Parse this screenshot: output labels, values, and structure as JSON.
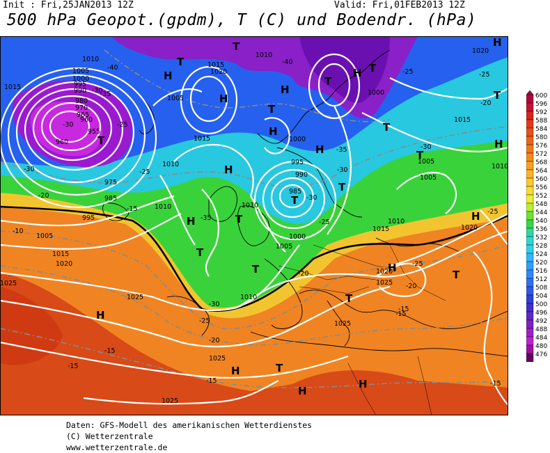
{
  "header": {
    "init": "Init : Fri,25JAN2013 12Z",
    "valid": "Valid: Fri,01FEB2013 12Z",
    "title": "500 hPa Geopot.(gpdm), T (C) und Bodendr. (hPa)"
  },
  "footer": {
    "line1": "Daten: GFS-Modell des amerikanischen Wetterdienstes",
    "line2": "(C) Wetterzentrale",
    "line3": "www.wetterzentrale.de"
  },
  "colors": {
    "violet": "#9900cc",
    "blue": "#2255ee",
    "cyan": "#22ccee",
    "green": "#33dd33",
    "yellow": "#eeee22",
    "orange": "#f08020",
    "red": "#cc3311"
  },
  "legend": {
    "levels": [
      "600",
      "596",
      "592",
      "588",
      "584",
      "580",
      "576",
      "572",
      "568",
      "564",
      "560",
      "556",
      "552",
      "548",
      "544",
      "540",
      "536",
      "532",
      "528",
      "524",
      "520",
      "516",
      "512",
      "508",
      "504",
      "500",
      "496",
      "492",
      "488",
      "484",
      "480",
      "476"
    ],
    "colors": [
      "#b0083c",
      "#c81030",
      "#d82020",
      "#e03a18",
      "#e85018",
      "#ec6418",
      "#f07818",
      "#f48c18",
      "#f8a020",
      "#fab428",
      "#fcc830",
      "#f8dc30",
      "#eeee30",
      "#b8f030",
      "#70e038",
      "#38d840",
      "#30d8a0",
      "#30d8d0",
      "#30d0f0",
      "#30b8f8",
      "#30a0f8",
      "#3088f8",
      "#3070f0",
      "#3058e8",
      "#3040d8",
      "#4030c8",
      "#6028c0",
      "#8020c0",
      "#a020c8",
      "#c020d0",
      "#a010a0",
      "#600060"
    ]
  },
  "map": {
    "pressure_labels": [
      "1015",
      "1015",
      "1010",
      "1005",
      "1005",
      "1000",
      "995",
      "995",
      "990",
      "985",
      "980",
      "975",
      "970",
      "965",
      "960",
      "955",
      "960",
      "1020",
      "1020",
      "1025",
      "1025",
      "1025",
      "1025",
      "1025",
      "1010",
      "1010",
      "1010",
      "1005",
      "1000",
      "1000",
      "995",
      "990",
      "985",
      "1015",
      "1010",
      "1005",
      "1015",
      "1020",
      "1025",
      "1020",
      "1005",
      "1010",
      "1015",
      "1020",
      "1010",
      "1005",
      "1000",
      "1010",
      "1015"
    ],
    "temp_labels": [
      "-40",
      "-35",
      "-30",
      "-25",
      "-20",
      "-15",
      "-10",
      "-30",
      "-35",
      "-40",
      "-25",
      "-30",
      "-25",
      "-20",
      "-15",
      "-30",
      "-35",
      "-30",
      "-20",
      "-25",
      "-30",
      "-25",
      "-20",
      "-15",
      "-20",
      "-25",
      "-30",
      "-25",
      "-15",
      "-15",
      "-15",
      "-25",
      "-15"
    ],
    "high_symbol": "H",
    "low_symbol": "T"
  }
}
